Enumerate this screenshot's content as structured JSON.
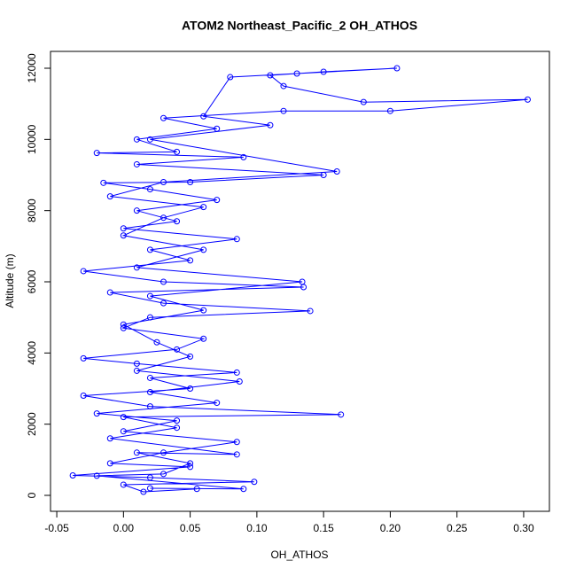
{
  "chart_data": {
    "type": "line",
    "title": "ATOM2 Northeast_Pacific_2 OH_ATHOS",
    "x_label": "OH_ATHOS",
    "y_label": "Altitude (m)",
    "marker": "open-circle",
    "xlim": [
      -0.0547,
      0.3193
    ],
    "ylim": [
      -448,
      12473
    ],
    "xticks": [
      -0.05,
      {
        "value": 0,
        "label": "0.00"
      },
      0.05,
      {
        "value": 0.1,
        "label": "0.10"
      },
      0.15,
      {
        "value": 0.2,
        "label": "0.20"
      },
      0.25,
      {
        "value": 0.3,
        "label": "0.30"
      }
    ],
    "yticks": [
      0,
      2000,
      4000,
      6000,
      8000,
      10000,
      12000
    ],
    "series": [
      {
        "color": "#0000ff",
        "x": [
          0.02,
          0.09,
          -0.02,
          0.03,
          0.05,
          0.01,
          0.085,
          -0.01,
          0.04,
          0.0,
          0.163,
          0.02,
          -0.03,
          0.05,
          0.02,
          0.085,
          0.01,
          -0.03,
          0.04,
          0.06,
          0.0,
          0.02,
          0.14,
          0.03,
          -0.01,
          0.135,
          0.03,
          -0.03,
          0.05,
          0.02,
          0.085,
          0.0,
          0.04,
          0.01,
          0.07,
          0.02,
          -0.015,
          0.05,
          0.15,
          0.01,
          0.09,
          -0.02,
          0.04,
          0.01,
          0.07,
          0.03,
          0.12,
          0.2,
          0.303,
          0.18,
          0.12,
          0.11,
          0.15,
          0.205,
          0.13,
          0.08,
          0.06,
          0.11,
          0.02,
          0.16,
          0.03,
          -0.01,
          0.06,
          0.03,
          0.0,
          0.06,
          0.01,
          0.134,
          0.02,
          0.06,
          0.0,
          0.025,
          0.05,
          0.01,
          0.087,
          0.02,
          0.07,
          -0.02,
          0.04,
          0.0,
          0.085,
          0.03,
          -0.01,
          0.05,
          -0.038,
          0.02,
          0.098,
          0.0,
          0.015,
          0.055
        ],
        "y": [
          200,
          180,
          550,
          600,
          900,
          1200,
          1150,
          1600,
          1900,
          2200,
          2270,
          2500,
          2800,
          3000,
          3300,
          3450,
          3700,
          3850,
          4100,
          4400,
          4700,
          5000,
          5180,
          5400,
          5700,
          5850,
          6000,
          6300,
          6600,
          6900,
          7200,
          7500,
          7700,
          8000,
          8300,
          8600,
          8780,
          8800,
          9000,
          9300,
          9500,
          9620,
          9650,
          10000,
          10300,
          10600,
          10800,
          10800,
          11120,
          11050,
          11500,
          11800,
          11900,
          12000,
          11850,
          11750,
          10650,
          10400,
          10000,
          9100,
          8800,
          8400,
          8100,
          7800,
          7300,
          6900,
          6400,
          6000,
          5600,
          5200,
          4800,
          4300,
          3900,
          3500,
          3200,
          2900,
          2600,
          2300,
          2100,
          1800,
          1500,
          1200,
          900,
          800,
          560,
          500,
          380,
          300,
          100,
          180
        ]
      }
    ]
  }
}
